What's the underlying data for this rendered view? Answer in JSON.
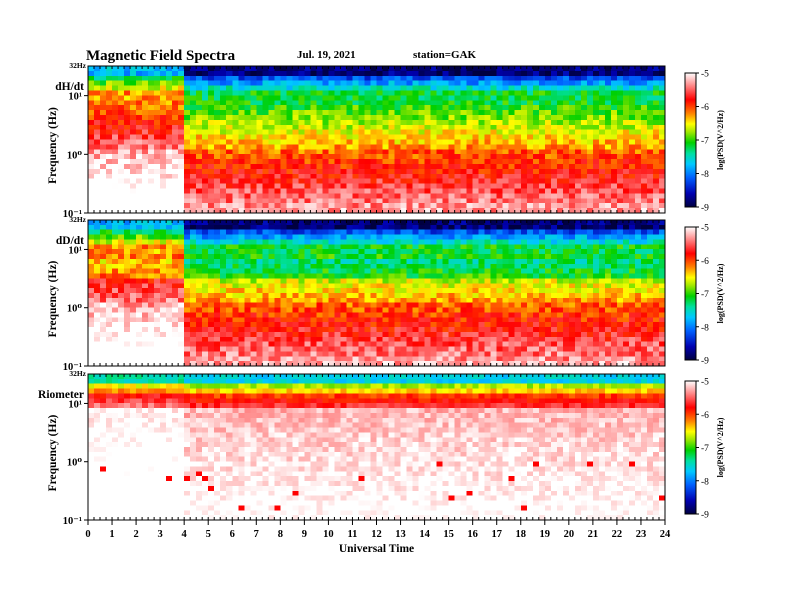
{
  "header": {
    "title": "Magnetic  Field  Spectra",
    "date": "Jul.  19,  2021",
    "station": "station=GAK"
  },
  "chart_data": [
    {
      "type": "heatmap",
      "panel_label": "dH/dt",
      "ylabel": "Frequency  (Hz)",
      "top_tick": "32Hz",
      "y_ticks": [
        "10⁻¹",
        "10⁰",
        "10¹"
      ],
      "colorbar": {
        "label": "log(PSD(V^2/Hz)",
        "range": [
          -9,
          -5
        ],
        "ticks": [
          "-9",
          "-8",
          "-7",
          "-6",
          "-5"
        ]
      }
    },
    {
      "type": "heatmap",
      "panel_label": "dD/dt",
      "ylabel": "Frequency  (Hz)",
      "top_tick": "32Hz",
      "y_ticks": [
        "10⁻¹",
        "10⁰",
        "10¹"
      ],
      "colorbar": {
        "label": "log(PSD(V^2/Hz)",
        "range": [
          -9,
          -5
        ],
        "ticks": [
          "-9",
          "-8",
          "-7",
          "-6",
          "-5"
        ]
      }
    },
    {
      "type": "heatmap",
      "panel_label": "Riometer",
      "ylabel": "Frequency  (Hz)",
      "top_tick": "32Hz",
      "y_ticks": [
        "10⁻¹",
        "10⁰",
        "10¹"
      ],
      "colorbar": {
        "label": "log(PSD(V^2/Hz)",
        "range": [
          -9,
          -5
        ],
        "ticks": [
          "-9",
          "-8",
          "-7",
          "-6",
          "-5"
        ]
      }
    }
  ],
  "x_axis": {
    "label": "Universal  Time",
    "range": [
      0,
      24
    ],
    "ticks": [
      "0",
      "1",
      "2",
      "3",
      "4",
      "5",
      "6",
      "7",
      "8",
      "9",
      "10",
      "11",
      "12",
      "13",
      "14",
      "15",
      "16",
      "17",
      "18",
      "19",
      "20",
      "21",
      "22",
      "23",
      "24"
    ]
  }
}
